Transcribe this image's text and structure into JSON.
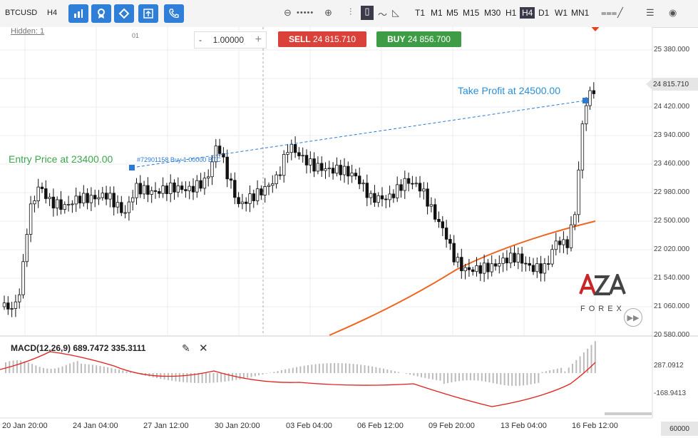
{
  "symbol": "BTCUSD",
  "timeframe_label": "H4",
  "toolbar_icons": [
    "bar-chart-icon",
    "award-icon",
    "diamond-icon",
    "upload-icon",
    "phone-icon"
  ],
  "zoom_icons": {
    "minus": "⊖",
    "plus": "⊕"
  },
  "timeframes": [
    "T1",
    "M1",
    "M5",
    "M15",
    "M30",
    "H1",
    "H4",
    "D1",
    "W1",
    "MN1"
  ],
  "active_timeframe": "H4",
  "hidden_label": "Hidden: 1",
  "hidden_num": "01",
  "lot": {
    "minus": "-",
    "value": "1.00000",
    "plus": "+"
  },
  "sell": {
    "label": "SELL",
    "price": "24 815.710"
  },
  "buy": {
    "label": "BUY",
    "price": "24 856.700"
  },
  "price_axis": [
    "25 380.000",
    "24 420.000",
    "23 940.000",
    "23 460.000",
    "22 980.000",
    "22 500.000",
    "22 020.000",
    "21 540.000",
    "21 060.000",
    "20 580.000"
  ],
  "current_price": "24 815.710",
  "take_profit_label": "Take Profit at 24500.00",
  "entry_label": "Entry Price at 23400.00",
  "order_label": "#72901158 Buy 1.00000 BTC",
  "macd_label": "MACD(12,26,9) 689.7472 335.3111",
  "macd_axis": [
    "287.0912",
    "-168.9413"
  ],
  "date_labels": [
    "20 Jan 20:00",
    "24 Jan 04:00",
    "27 Jan 12:00",
    "30 Jan 20:00",
    "03 Feb 04:00",
    "06 Feb 12:00",
    "09 Feb 20:00",
    "13 Feb 04:00",
    "16 Feb 12:00"
  ],
  "indicator_value": "60000",
  "logo": {
    "top": "AZA",
    "bottom": "FOREX"
  },
  "colors": {
    "blue": "#2f7ed8",
    "sell": "#d9413a",
    "buy": "#3f9c46",
    "ma": "#f0641e",
    "macd_signal": "#e0211c"
  }
}
